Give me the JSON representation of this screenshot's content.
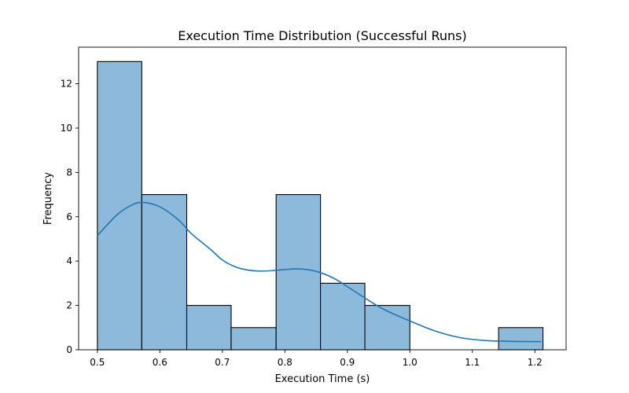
{
  "chart_data": {
    "type": "bar",
    "title": "Execution Time Distribution (Successful Runs)",
    "xlabel": "Execution Time (s)",
    "ylabel": "Frequency",
    "xlim": [
      0.47,
      1.25
    ],
    "ylim": [
      0,
      13.65
    ],
    "grid": false,
    "x_ticks": [
      0.5,
      0.6,
      0.7,
      0.8,
      0.9,
      1.0,
      1.1,
      1.2
    ],
    "x_tick_labels": [
      "0.5",
      "0.6",
      "0.7",
      "0.8",
      "0.9",
      "1.0",
      "1.1",
      "1.2"
    ],
    "y_ticks": [
      0,
      2,
      4,
      6,
      8,
      10,
      12
    ],
    "y_tick_labels": [
      "0",
      "2",
      "4",
      "6",
      "8",
      "10",
      "12"
    ],
    "bins": [
      {
        "start": 0.5,
        "end": 0.571,
        "count": 13
      },
      {
        "start": 0.571,
        "end": 0.643,
        "count": 7
      },
      {
        "start": 0.643,
        "end": 0.714,
        "count": 2
      },
      {
        "start": 0.714,
        "end": 0.786,
        "count": 1
      },
      {
        "start": 0.786,
        "end": 0.857,
        "count": 7
      },
      {
        "start": 0.857,
        "end": 0.928,
        "count": 3
      },
      {
        "start": 0.928,
        "end": 1.0,
        "count": 2
      },
      {
        "start": 1.0,
        "end": 1.071,
        "count": 0
      },
      {
        "start": 1.071,
        "end": 1.142,
        "count": 0
      },
      {
        "start": 1.142,
        "end": 1.213,
        "count": 1
      }
    ],
    "kde": {
      "x": [
        0.5,
        0.53,
        0.55,
        0.57,
        0.6,
        0.63,
        0.65,
        0.68,
        0.7,
        0.72,
        0.74,
        0.76,
        0.78,
        0.8,
        0.82,
        0.84,
        0.86,
        0.88,
        0.9,
        0.93,
        0.96,
        1.0,
        1.04,
        1.08,
        1.12,
        1.16,
        1.21
      ],
      "y": [
        5.15,
        6.05,
        6.45,
        6.65,
        6.45,
        5.85,
        5.25,
        4.55,
        4.05,
        3.75,
        3.6,
        3.55,
        3.57,
        3.62,
        3.65,
        3.6,
        3.45,
        3.2,
        2.85,
        2.3,
        1.8,
        1.3,
        0.85,
        0.55,
        0.42,
        0.38,
        0.37
      ]
    },
    "colors": {
      "bar_fill": "#8dbadb",
      "bar_edge": "#000000",
      "kde_line": "#1f77b4"
    }
  }
}
